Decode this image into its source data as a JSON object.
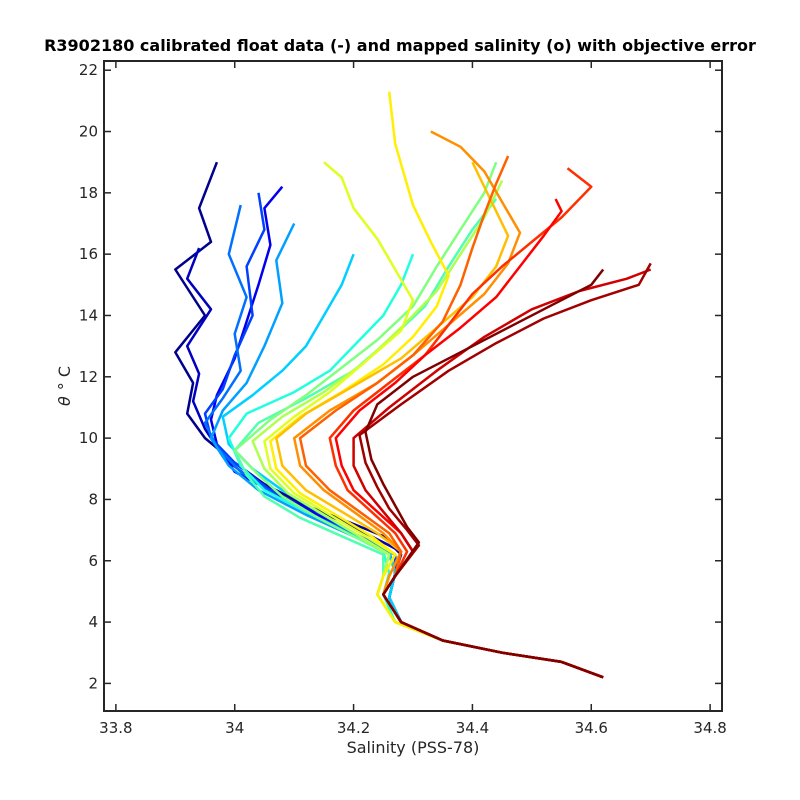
{
  "chart_data": {
    "type": "line",
    "title": "R3902180 calibrated float data (-) and mapped salinity (o) with objective error",
    "xlabel": "Salinity (PSS-78)",
    "ylabel_symbol": "θ",
    "ylabel_units": "° C",
    "xlim": [
      33.78,
      34.82
    ],
    "ylim": [
      1.1,
      22.3
    ],
    "xticks": [
      33.8,
      34,
      34.2,
      34.4,
      34.6,
      34.8
    ],
    "xtick_labels": [
      "33.8",
      "34",
      "34.2",
      "34.4",
      "34.6",
      "34.8"
    ],
    "yticks": [
      2,
      4,
      6,
      8,
      10,
      12,
      14,
      16,
      18,
      20,
      22
    ],
    "ytick_labels": [
      "2",
      "4",
      "6",
      "8",
      "10",
      "12",
      "14",
      "16",
      "18",
      "20",
      "22"
    ],
    "grid": false,
    "legend": "none",
    "colormap": "jet",
    "series": [
      {
        "color": "#00008f",
        "x": [
          34.62,
          34.55,
          34.45,
          34.35,
          34.28,
          34.26,
          34.27,
          34.28,
          34.25,
          34.2,
          34.12,
          34.05,
          34.0,
          33.95,
          33.92,
          33.93,
          33.9,
          33.95,
          33.9,
          33.96,
          33.94,
          33.97
        ],
        "y": [
          2.2,
          2.7,
          3.0,
          3.4,
          4.0,
          4.8,
          5.6,
          6.2,
          6.8,
          7.2,
          7.8,
          8.5,
          9.2,
          10.0,
          10.8,
          11.8,
          12.8,
          14.0,
          15.5,
          16.4,
          17.5,
          19.0
        ]
      },
      {
        "color": "#0000c0",
        "x": [
          34.62,
          34.55,
          34.45,
          34.35,
          34.28,
          34.26,
          34.27,
          34.28,
          34.24,
          34.18,
          34.1,
          34.03,
          33.98,
          33.95,
          33.93,
          33.94,
          33.92,
          33.96,
          33.92,
          33.94
        ],
        "y": [
          2.2,
          2.7,
          3.0,
          3.4,
          4.0,
          4.8,
          5.6,
          6.3,
          6.7,
          7.3,
          7.9,
          8.6,
          9.4,
          10.3,
          11.2,
          12.1,
          13.0,
          14.2,
          15.2,
          16.2
        ]
      },
      {
        "color": "#0000ef",
        "x": [
          34.62,
          34.55,
          34.45,
          34.35,
          34.28,
          34.26,
          34.27,
          34.27,
          34.23,
          34.16,
          34.08,
          34.0,
          33.97,
          33.96,
          33.97,
          34.0,
          34.02,
          34.04,
          34.06,
          34.05,
          34.08
        ],
        "y": [
          2.2,
          2.7,
          3.0,
          3.4,
          4.0,
          4.8,
          5.6,
          6.2,
          6.6,
          7.3,
          8.1,
          8.9,
          9.8,
          10.6,
          11.4,
          12.6,
          13.8,
          15.0,
          16.3,
          17.5,
          18.2
        ]
      },
      {
        "color": "#0040ff",
        "x": [
          34.62,
          34.55,
          34.45,
          34.35,
          34.28,
          34.26,
          34.27,
          34.27,
          34.22,
          34.14,
          34.06,
          34.0,
          33.96,
          33.95,
          33.98,
          34.0,
          34.03,
          34.02,
          34.05,
          34.04
        ],
        "y": [
          2.2,
          2.7,
          3.0,
          3.4,
          4.0,
          4.8,
          5.6,
          6.2,
          6.7,
          7.4,
          8.3,
          9.2,
          10.0,
          10.8,
          11.6,
          12.7,
          14.0,
          15.6,
          16.8,
          18.0
        ]
      },
      {
        "color": "#0070ff",
        "x": [
          34.62,
          34.55,
          34.45,
          34.35,
          34.28,
          34.26,
          34.27,
          34.26,
          34.21,
          34.14,
          34.07,
          34.01,
          33.97,
          33.95,
          33.98,
          34.01,
          34.0,
          34.02,
          33.99,
          34.01
        ],
        "y": [
          2.2,
          2.7,
          3.0,
          3.4,
          4.0,
          4.8,
          5.6,
          6.3,
          6.8,
          7.4,
          8.1,
          8.9,
          9.7,
          10.5,
          11.3,
          12.2,
          13.4,
          14.6,
          16.0,
          17.6
        ]
      },
      {
        "color": "#00a0ff",
        "x": [
          34.62,
          34.55,
          34.45,
          34.35,
          34.28,
          34.26,
          34.27,
          34.26,
          34.2,
          34.12,
          34.04,
          33.99,
          33.96,
          33.98,
          34.02,
          34.05,
          34.08,
          34.07,
          34.1
        ],
        "y": [
          2.2,
          2.7,
          3.0,
          3.4,
          4.0,
          4.8,
          5.6,
          6.3,
          6.8,
          7.5,
          8.3,
          9.1,
          10.0,
          10.9,
          11.8,
          13.0,
          14.4,
          15.8,
          17.0
        ]
      },
      {
        "color": "#00d0ff",
        "x": [
          34.62,
          34.55,
          34.45,
          34.35,
          34.28,
          34.26,
          34.27,
          34.26,
          34.2,
          34.14,
          34.08,
          34.03,
          33.99,
          33.98,
          34.03,
          34.08,
          34.12,
          34.15,
          34.18,
          34.2
        ],
        "y": [
          2.2,
          2.7,
          3.0,
          3.4,
          4.0,
          4.8,
          5.6,
          6.2,
          6.9,
          7.6,
          8.3,
          9.0,
          9.8,
          10.7,
          11.4,
          12.2,
          13.0,
          14.0,
          15.0,
          16.0
        ]
      },
      {
        "color": "#20ffdf",
        "x": [
          34.62,
          34.55,
          34.45,
          34.35,
          34.27,
          34.25,
          34.26,
          34.25,
          34.19,
          34.12,
          34.05,
          34.01,
          33.99,
          34.02,
          34.1,
          34.16,
          34.2,
          34.25,
          34.28,
          34.3
        ],
        "y": [
          2.2,
          2.7,
          3.0,
          3.4,
          4.0,
          4.9,
          5.6,
          6.3,
          6.9,
          7.6,
          8.3,
          9.1,
          10.0,
          10.8,
          11.5,
          12.2,
          13.0,
          14.0,
          15.0,
          16.0
        ]
      },
      {
        "color": "#50ffaf",
        "x": [
          34.62,
          34.55,
          34.45,
          34.35,
          34.27,
          34.24,
          34.25,
          34.25,
          34.18,
          34.11,
          34.05,
          34.02,
          34.0,
          34.04,
          34.12,
          34.2,
          34.26,
          34.32,
          34.36,
          34.4,
          34.44
        ],
        "y": [
          2.2,
          2.7,
          3.0,
          3.4,
          4.0,
          4.9,
          5.5,
          6.2,
          6.8,
          7.4,
          8.1,
          8.8,
          9.6,
          10.5,
          11.3,
          12.2,
          13.2,
          14.3,
          15.6,
          16.8,
          17.8
        ]
      },
      {
        "color": "#80ff80",
        "x": [
          34.62,
          34.55,
          34.45,
          34.35,
          34.27,
          34.24,
          34.25,
          34.26,
          34.2,
          34.14,
          34.08,
          34.04,
          34.0,
          34.06,
          34.12,
          34.18,
          34.24,
          34.3,
          34.34,
          34.38,
          34.42,
          34.44
        ],
        "y": [
          2.2,
          2.7,
          3.0,
          3.4,
          4.0,
          4.9,
          5.5,
          6.2,
          6.8,
          7.4,
          8.1,
          8.8,
          9.6,
          10.6,
          11.4,
          12.3,
          13.2,
          14.3,
          15.6,
          16.8,
          18.0,
          19.0
        ]
      },
      {
        "color": "#afff50",
        "x": [
          34.62,
          34.55,
          34.45,
          34.35,
          34.27,
          34.24,
          34.25,
          34.26,
          34.21,
          34.15,
          34.09,
          34.05,
          34.03,
          34.08,
          34.15,
          34.22,
          34.28,
          34.34,
          34.38,
          34.42,
          34.45
        ],
        "y": [
          2.2,
          2.7,
          3.0,
          3.4,
          4.0,
          4.9,
          5.5,
          6.2,
          6.8,
          7.5,
          8.2,
          9.0,
          9.9,
          10.7,
          11.5,
          12.5,
          13.6,
          14.8,
          16.0,
          17.2,
          18.4
        ]
      },
      {
        "color": "#dfff20",
        "x": [
          34.62,
          34.55,
          34.45,
          34.35,
          34.27,
          34.24,
          34.25,
          34.27,
          34.22,
          34.16,
          34.1,
          34.06,
          34.05,
          34.1,
          34.16,
          34.22,
          34.28,
          34.3,
          34.27,
          34.24,
          34.2,
          34.18,
          34.15
        ],
        "y": [
          2.2,
          2.7,
          3.0,
          3.4,
          4.0,
          4.9,
          5.5,
          6.2,
          6.8,
          7.5,
          8.2,
          9.0,
          9.9,
          10.7,
          11.5,
          12.5,
          13.5,
          14.5,
          15.5,
          16.5,
          17.5,
          18.5,
          19.0
        ]
      },
      {
        "color": "#ffef00",
        "x": [
          34.62,
          34.55,
          34.45,
          34.35,
          34.27,
          34.24,
          34.25,
          34.27,
          34.23,
          34.17,
          34.11,
          34.07,
          34.06,
          34.11,
          34.18,
          34.25,
          34.3,
          34.34,
          34.36,
          34.33,
          34.3,
          34.27,
          34.26
        ],
        "y": [
          2.2,
          2.7,
          3.0,
          3.4,
          4.0,
          4.9,
          5.5,
          6.2,
          6.8,
          7.5,
          8.2,
          9.0,
          9.9,
          10.7,
          11.5,
          12.4,
          13.3,
          14.3,
          15.3,
          16.4,
          17.6,
          19.6,
          21.3
        ]
      },
      {
        "color": "#ffbf00",
        "x": [
          34.62,
          34.55,
          34.45,
          34.35,
          34.28,
          34.25,
          34.26,
          34.28,
          34.24,
          34.18,
          34.12,
          34.08,
          34.07,
          34.12,
          34.2,
          34.28,
          34.34,
          34.4,
          34.44,
          34.46,
          34.43,
          34.4
        ],
        "y": [
          2.2,
          2.7,
          3.0,
          3.4,
          4.0,
          4.9,
          5.5,
          6.3,
          6.9,
          7.6,
          8.3,
          9.1,
          10.0,
          10.8,
          11.7,
          12.6,
          13.6,
          14.6,
          15.6,
          16.6,
          17.8,
          19.0
        ]
      },
      {
        "color": "#ff8f00",
        "x": [
          34.62,
          34.55,
          34.45,
          34.35,
          34.28,
          34.25,
          34.26,
          34.28,
          34.25,
          34.2,
          34.15,
          34.11,
          34.1,
          34.16,
          34.24,
          34.3,
          34.36,
          34.42,
          34.46,
          34.48,
          34.45,
          34.42,
          34.38,
          34.33
        ],
        "y": [
          2.2,
          2.7,
          3.0,
          3.4,
          4.0,
          4.9,
          5.5,
          6.3,
          6.9,
          7.6,
          8.3,
          9.1,
          10.0,
          10.9,
          11.8,
          12.7,
          13.7,
          14.7,
          15.7,
          16.7,
          17.7,
          18.7,
          19.5,
          20.0
        ]
      },
      {
        "color": "#ff6000",
        "x": [
          34.62,
          34.55,
          34.45,
          34.35,
          34.28,
          34.25,
          34.27,
          34.28,
          34.26,
          34.21,
          34.16,
          34.12,
          34.11,
          34.17,
          34.24,
          34.3,
          34.35,
          34.38,
          34.4,
          34.42,
          34.44,
          34.46
        ],
        "y": [
          2.2,
          2.7,
          3.0,
          3.4,
          4.0,
          4.9,
          5.5,
          6.3,
          6.9,
          7.6,
          8.3,
          9.1,
          10.0,
          10.9,
          11.8,
          12.7,
          13.8,
          15.0,
          16.2,
          17.3,
          18.3,
          19.2
        ]
      },
      {
        "color": "#ff3000",
        "x": [
          34.62,
          34.55,
          34.45,
          34.35,
          34.28,
          34.25,
          34.27,
          34.29,
          34.27,
          34.23,
          34.19,
          34.17,
          34.16,
          34.2,
          34.26,
          34.32,
          34.36,
          34.4,
          34.45,
          34.5,
          34.55,
          34.6,
          34.56
        ],
        "y": [
          2.2,
          2.7,
          3.0,
          3.4,
          4.0,
          4.9,
          5.5,
          6.3,
          6.9,
          7.6,
          8.3,
          9.1,
          10.0,
          10.9,
          11.8,
          12.7,
          13.7,
          14.7,
          15.6,
          16.4,
          17.2,
          18.2,
          18.8
        ]
      },
      {
        "color": "#ff0000",
        "x": [
          34.62,
          34.55,
          34.45,
          34.35,
          34.28,
          34.25,
          34.27,
          34.3,
          34.28,
          34.24,
          34.2,
          34.18,
          34.17,
          34.21,
          34.27,
          34.32,
          34.38,
          34.44,
          34.48,
          34.52,
          34.55,
          34.54
        ],
        "y": [
          2.2,
          2.7,
          3.0,
          3.4,
          4.0,
          4.9,
          5.5,
          6.3,
          6.9,
          7.6,
          8.3,
          9.1,
          10.0,
          10.9,
          11.8,
          12.7,
          13.6,
          14.6,
          15.6,
          16.6,
          17.4,
          17.8
        ]
      },
      {
        "color": "#d00000",
        "x": [
          34.62,
          34.55,
          34.45,
          34.35,
          34.28,
          34.25,
          34.27,
          34.3,
          34.28,
          34.25,
          34.22,
          34.2,
          34.2,
          34.26,
          34.34,
          34.42,
          34.5,
          34.58,
          34.66,
          34.7
        ],
        "y": [
          2.2,
          2.7,
          3.0,
          3.4,
          4.0,
          4.9,
          5.5,
          6.3,
          6.9,
          7.6,
          8.3,
          9.1,
          10.0,
          11.0,
          12.2,
          13.3,
          14.2,
          14.8,
          15.2,
          15.5
        ]
      },
      {
        "color": "#a00000",
        "x": [
          34.62,
          34.55,
          34.45,
          34.35,
          34.28,
          34.25,
          34.27,
          34.31,
          34.29,
          34.26,
          34.24,
          34.22,
          34.21,
          34.28,
          34.36,
          34.44,
          34.52,
          34.6,
          34.68,
          34.7
        ],
        "y": [
          2.2,
          2.7,
          3.0,
          3.4,
          4.0,
          4.9,
          5.5,
          6.5,
          7.0,
          7.7,
          8.4,
          9.2,
          10.1,
          11.1,
          12.2,
          13.1,
          13.9,
          14.5,
          15.0,
          15.7
        ]
      },
      {
        "color": "#800000",
        "x": [
          34.62,
          34.55,
          34.45,
          34.35,
          34.28,
          34.25,
          34.27,
          34.31,
          34.29,
          34.27,
          34.25,
          34.23,
          34.22,
          34.24,
          34.3,
          34.38,
          34.46,
          34.54,
          34.6,
          34.62
        ],
        "y": [
          2.2,
          2.7,
          3.0,
          3.4,
          4.0,
          4.9,
          5.5,
          6.6,
          7.1,
          7.8,
          8.5,
          9.3,
          10.2,
          11.1,
          12.0,
          12.8,
          13.6,
          14.4,
          15.0,
          15.5
        ]
      }
    ]
  }
}
